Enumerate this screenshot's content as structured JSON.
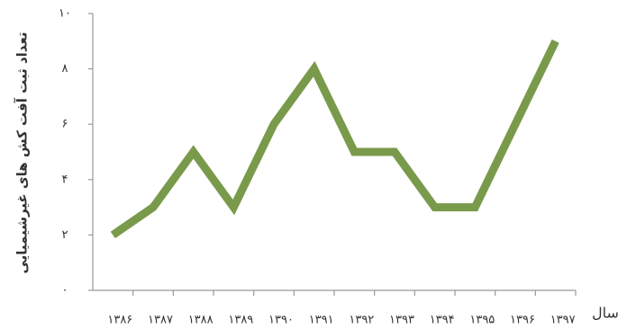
{
  "chart_data": {
    "type": "line",
    "y_label": "تعداد ثبت آفت کش های غیرشیمیایی",
    "x_label": "سال",
    "categories": [
      "۱۳۸۶",
      "۱۳۸۷",
      "۱۳۸۸",
      "۱۳۸۹",
      "۱۳۹۰",
      "۱۳۹۱",
      "۱۳۹۲",
      "۱۳۹۳",
      "۱۳۹۴",
      "۱۳۹۵",
      "۱۳۹۶",
      "۱۳۹۷"
    ],
    "series": [
      {
        "color": "#7a9a4b",
        "values": [
          2,
          3,
          5,
          3,
          6,
          8,
          5,
          5,
          3,
          3,
          6,
          9
        ]
      }
    ],
    "ylim": [
      0,
      10
    ],
    "yticks": [
      {
        "value": 0,
        "label": "۰"
      },
      {
        "value": 2,
        "label": "۲"
      },
      {
        "value": 4,
        "label": "۴"
      },
      {
        "value": 6,
        "label": "۶"
      },
      {
        "value": 8,
        "label": "۸"
      },
      {
        "value": 10,
        "label": "۱۰"
      }
    ],
    "grid": false
  }
}
